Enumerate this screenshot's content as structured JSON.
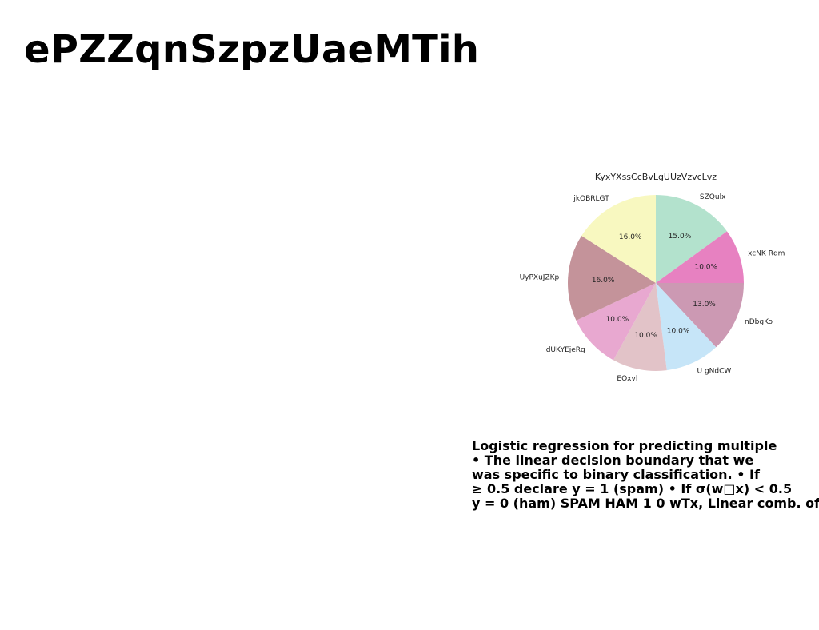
{
  "page": {
    "title": "ePZZqnSzpzUaeMTih",
    "text_lines": [
      "Logistic regression for predicting multiple",
      "• The linear decision boundary that we",
      "was specific to binary classification. • If",
      "≥ 0.5 declare y = 1 (spam) • If σ(w□x) < 0.5",
      "y = 0 (ham) SPAM HAM 1 0 wTx, Linear comb. of"
    ]
  },
  "chart_data": {
    "type": "pie",
    "title": "KyxYXssCcBvLgUUzVzvcLvz",
    "start_angle": 90,
    "direction": "clockwise",
    "labels": [
      "SZQulx",
      "xcNK Rdm",
      "nDbgKo",
      "U gNdCW",
      "EQxvl",
      "dUKYEjeRg",
      "UyPXuJZKp",
      "jkOBRLGT"
    ],
    "values": [
      15.0,
      10.0,
      13.0,
      10.0,
      10.0,
      10.0,
      16.0,
      16.0
    ],
    "percent_labels": [
      "15.0%",
      "10.0%",
      "13.0%",
      "10.0%",
      "10.0%",
      "10.0%",
      "16.0%",
      "16.0%"
    ],
    "colors": [
      "#b3e2cd",
      "#e781c1",
      "#cc99b3",
      "#c6e5f8",
      "#e2c3c8",
      "#e8a8d0",
      "#c4939a",
      "#f8f8c0"
    ]
  }
}
